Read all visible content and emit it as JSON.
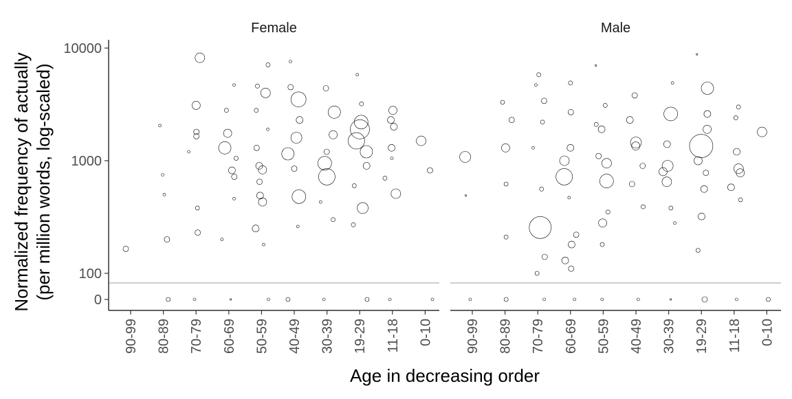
{
  "chart_data": {
    "type": "scatter",
    "ylabel_line1": "Normalized frequency of actually",
    "ylabel_line2": "(per million words, log-scaled)",
    "xlabel": "Age in decreasing order",
    "y_scale": "log",
    "y_ticks": [
      "10000",
      "1000",
      "100",
      "0"
    ],
    "categories": [
      "90-99",
      "80-89",
      "70-79",
      "60-69",
      "50-59",
      "40-49",
      "30-39",
      "19-29",
      "11-18",
      "0-10"
    ],
    "grid": false,
    "point_style": "hollow circles, size proportional to speaker word count",
    "zero_band_color": "#bdbdbd",
    "facets": [
      {
        "name": "Female",
        "points": [
          {
            "x": "90-99",
            "y": 165,
            "s": 4
          },
          {
            "x": "80-89",
            "y": 200,
            "s": 4
          },
          {
            "x": "80-89",
            "y": 500,
            "s": 2
          },
          {
            "x": "80-89",
            "y": 750,
            "s": 2
          },
          {
            "x": "80-89",
            "y": 2050,
            "s": 2
          },
          {
            "x": "80-89",
            "y": 0,
            "s": 3
          },
          {
            "x": "70-79",
            "y": 8200,
            "s": 7
          },
          {
            "x": "70-79",
            "y": 3100,
            "s": 6
          },
          {
            "x": "70-79",
            "y": 1800,
            "s": 4
          },
          {
            "x": "70-79",
            "y": 1650,
            "s": 4
          },
          {
            "x": "70-79",
            "y": 1200,
            "s": 2
          },
          {
            "x": "70-79",
            "y": 380,
            "s": 3
          },
          {
            "x": "70-79",
            "y": 230,
            "s": 4
          },
          {
            "x": "70-79",
            "y": 0,
            "s": 2
          },
          {
            "x": "60-69",
            "y": 4700,
            "s": 2
          },
          {
            "x": "60-69",
            "y": 2800,
            "s": 3
          },
          {
            "x": "60-69",
            "y": 1750,
            "s": 6
          },
          {
            "x": "60-69",
            "y": 1300,
            "s": 9
          },
          {
            "x": "60-69",
            "y": 1050,
            "s": 3
          },
          {
            "x": "60-69",
            "y": 820,
            "s": 5
          },
          {
            "x": "60-69",
            "y": 720,
            "s": 4
          },
          {
            "x": "60-69",
            "y": 460,
            "s": 2
          },
          {
            "x": "60-69",
            "y": 200,
            "s": 2
          },
          {
            "x": "60-69",
            "y": 0,
            "s": 1
          },
          {
            "x": "50-59",
            "y": 7100,
            "s": 3
          },
          {
            "x": "50-59",
            "y": 4600,
            "s": 3
          },
          {
            "x": "50-59",
            "y": 4000,
            "s": 7
          },
          {
            "x": "50-59",
            "y": 2800,
            "s": 3
          },
          {
            "x": "50-59",
            "y": 1900,
            "s": 2
          },
          {
            "x": "50-59",
            "y": 1300,
            "s": 4
          },
          {
            "x": "50-59",
            "y": 900,
            "s": 5
          },
          {
            "x": "50-59",
            "y": 830,
            "s": 6
          },
          {
            "x": "50-59",
            "y": 650,
            "s": 4
          },
          {
            "x": "50-59",
            "y": 490,
            "s": 5
          },
          {
            "x": "50-59",
            "y": 430,
            "s": 6
          },
          {
            "x": "50-59",
            "y": 250,
            "s": 5
          },
          {
            "x": "50-59",
            "y": 180,
            "s": 2
          },
          {
            "x": "50-59",
            "y": 0,
            "s": 2
          },
          {
            "x": "40-49",
            "y": 7600,
            "s": 2
          },
          {
            "x": "40-49",
            "y": 4500,
            "s": 4
          },
          {
            "x": "40-49",
            "y": 3500,
            "s": 11
          },
          {
            "x": "40-49",
            "y": 2300,
            "s": 5
          },
          {
            "x": "40-49",
            "y": 1600,
            "s": 8
          },
          {
            "x": "40-49",
            "y": 1150,
            "s": 9
          },
          {
            "x": "40-49",
            "y": 850,
            "s": 4
          },
          {
            "x": "40-49",
            "y": 480,
            "s": 10
          },
          {
            "x": "40-49",
            "y": 260,
            "s": 2
          },
          {
            "x": "40-49",
            "y": 0,
            "s": 3
          },
          {
            "x": "30-39",
            "y": 4400,
            "s": 4
          },
          {
            "x": "30-39",
            "y": 2700,
            "s": 9
          },
          {
            "x": "30-39",
            "y": 1700,
            "s": 6
          },
          {
            "x": "30-39",
            "y": 1200,
            "s": 4
          },
          {
            "x": "30-39",
            "y": 950,
            "s": 10
          },
          {
            "x": "30-39",
            "y": 720,
            "s": 12
          },
          {
            "x": "30-39",
            "y": 430,
            "s": 2
          },
          {
            "x": "30-39",
            "y": 300,
            "s": 3
          },
          {
            "x": "30-39",
            "y": 0,
            "s": 2
          },
          {
            "x": "19-29",
            "y": 5800,
            "s": 2
          },
          {
            "x": "19-29",
            "y": 3200,
            "s": 3
          },
          {
            "x": "19-29",
            "y": 2200,
            "s": 10
          },
          {
            "x": "19-29",
            "y": 1900,
            "s": 14
          },
          {
            "x": "19-29",
            "y": 1500,
            "s": 12
          },
          {
            "x": "19-29",
            "y": 1200,
            "s": 9
          },
          {
            "x": "19-29",
            "y": 900,
            "s": 5
          },
          {
            "x": "19-29",
            "y": 600,
            "s": 3
          },
          {
            "x": "19-29",
            "y": 380,
            "s": 8
          },
          {
            "x": "19-29",
            "y": 270,
            "s": 3
          },
          {
            "x": "19-29",
            "y": 0,
            "s": 3
          },
          {
            "x": "11-18",
            "y": 2800,
            "s": 6
          },
          {
            "x": "11-18",
            "y": 2300,
            "s": 5
          },
          {
            "x": "11-18",
            "y": 2000,
            "s": 5
          },
          {
            "x": "11-18",
            "y": 1300,
            "s": 5
          },
          {
            "x": "11-18",
            "y": 1050,
            "s": 2
          },
          {
            "x": "11-18",
            "y": 700,
            "s": 3
          },
          {
            "x": "11-18",
            "y": 510,
            "s": 7
          },
          {
            "x": "11-18",
            "y": 0,
            "s": 2
          },
          {
            "x": "0-10",
            "y": 1500,
            "s": 7
          },
          {
            "x": "0-10",
            "y": 820,
            "s": 4
          },
          {
            "x": "0-10",
            "y": 0,
            "s": 2
          }
        ]
      },
      {
        "name": "Male",
        "points": [
          {
            "x": "90-99",
            "y": 1080,
            "s": 8
          },
          {
            "x": "90-99",
            "y": 490,
            "s": 1
          },
          {
            "x": "90-99",
            "y": 0,
            "s": 2
          },
          {
            "x": "80-89",
            "y": 3300,
            "s": 3
          },
          {
            "x": "80-89",
            "y": 2300,
            "s": 4
          },
          {
            "x": "80-89",
            "y": 1300,
            "s": 6
          },
          {
            "x": "80-89",
            "y": 620,
            "s": 3
          },
          {
            "x": "80-89",
            "y": 210,
            "s": 3
          },
          {
            "x": "80-89",
            "y": 0,
            "s": 3
          },
          {
            "x": "70-79",
            "y": 5800,
            "s": 3
          },
          {
            "x": "70-79",
            "y": 4700,
            "s": 2
          },
          {
            "x": "70-79",
            "y": 3400,
            "s": 4
          },
          {
            "x": "70-79",
            "y": 2200,
            "s": 3
          },
          {
            "x": "70-79",
            "y": 1300,
            "s": 2
          },
          {
            "x": "70-79",
            "y": 560,
            "s": 3
          },
          {
            "x": "70-79",
            "y": 255,
            "s": 16
          },
          {
            "x": "70-79",
            "y": 140,
            "s": 4
          },
          {
            "x": "70-79",
            "y": 100,
            "s": 3
          },
          {
            "x": "70-79",
            "y": 0,
            "s": 2
          },
          {
            "x": "60-69",
            "y": 4900,
            "s": 3
          },
          {
            "x": "60-69",
            "y": 2700,
            "s": 4
          },
          {
            "x": "60-69",
            "y": 1300,
            "s": 5
          },
          {
            "x": "60-69",
            "y": 1000,
            "s": 7
          },
          {
            "x": "60-69",
            "y": 720,
            "s": 12
          },
          {
            "x": "60-69",
            "y": 470,
            "s": 2
          },
          {
            "x": "60-69",
            "y": 220,
            "s": 4
          },
          {
            "x": "60-69",
            "y": 180,
            "s": 5
          },
          {
            "x": "60-69",
            "y": 130,
            "s": 5
          },
          {
            "x": "60-69",
            "y": 110,
            "s": 4
          },
          {
            "x": "60-69",
            "y": 0,
            "s": 2
          },
          {
            "x": "50-59",
            "y": 7000,
            "s": 1
          },
          {
            "x": "50-59",
            "y": 3100,
            "s": 3
          },
          {
            "x": "50-59",
            "y": 2100,
            "s": 3
          },
          {
            "x": "50-59",
            "y": 1900,
            "s": 5
          },
          {
            "x": "50-59",
            "y": 1100,
            "s": 4
          },
          {
            "x": "50-59",
            "y": 950,
            "s": 7
          },
          {
            "x": "50-59",
            "y": 660,
            "s": 10
          },
          {
            "x": "50-59",
            "y": 350,
            "s": 3
          },
          {
            "x": "50-59",
            "y": 280,
            "s": 6
          },
          {
            "x": "50-59",
            "y": 180,
            "s": 3
          },
          {
            "x": "50-59",
            "y": 0,
            "s": 2
          },
          {
            "x": "40-49",
            "y": 3800,
            "s": 4
          },
          {
            "x": "40-49",
            "y": 2300,
            "s": 5
          },
          {
            "x": "40-49",
            "y": 1450,
            "s": 8
          },
          {
            "x": "40-49",
            "y": 1350,
            "s": 6
          },
          {
            "x": "40-49",
            "y": 900,
            "s": 4
          },
          {
            "x": "40-49",
            "y": 620,
            "s": 4
          },
          {
            "x": "40-49",
            "y": 390,
            "s": 3
          },
          {
            "x": "40-49",
            "y": 0,
            "s": 2
          },
          {
            "x": "30-39",
            "y": 4900,
            "s": 2
          },
          {
            "x": "30-39",
            "y": 2600,
            "s": 10
          },
          {
            "x": "30-39",
            "y": 1400,
            "s": 5
          },
          {
            "x": "30-39",
            "y": 900,
            "s": 8
          },
          {
            "x": "30-39",
            "y": 800,
            "s": 6
          },
          {
            "x": "30-39",
            "y": 650,
            "s": 7
          },
          {
            "x": "30-39",
            "y": 380,
            "s": 3
          },
          {
            "x": "30-39",
            "y": 280,
            "s": 2
          },
          {
            "x": "30-39",
            "y": 0,
            "s": 1
          },
          {
            "x": "19-29",
            "y": 8800,
            "s": 1
          },
          {
            "x": "19-29",
            "y": 4400,
            "s": 9
          },
          {
            "x": "19-29",
            "y": 2600,
            "s": 5
          },
          {
            "x": "19-29",
            "y": 1900,
            "s": 6
          },
          {
            "x": "19-29",
            "y": 1350,
            "s": 17
          },
          {
            "x": "19-29",
            "y": 1000,
            "s": 6
          },
          {
            "x": "19-29",
            "y": 780,
            "s": 4
          },
          {
            "x": "19-29",
            "y": 560,
            "s": 5
          },
          {
            "x": "19-29",
            "y": 320,
            "s": 5
          },
          {
            "x": "19-29",
            "y": 160,
            "s": 3
          },
          {
            "x": "19-29",
            "y": 0,
            "s": 4
          },
          {
            "x": "11-18",
            "y": 3000,
            "s": 3
          },
          {
            "x": "11-18",
            "y": 2400,
            "s": 3
          },
          {
            "x": "11-18",
            "y": 1200,
            "s": 5
          },
          {
            "x": "11-18",
            "y": 850,
            "s": 7
          },
          {
            "x": "11-18",
            "y": 780,
            "s": 6
          },
          {
            "x": "11-18",
            "y": 580,
            "s": 5
          },
          {
            "x": "11-18",
            "y": 450,
            "s": 3
          },
          {
            "x": "11-18",
            "y": 0,
            "s": 2
          },
          {
            "x": "0-10",
            "y": 1800,
            "s": 7
          },
          {
            "x": "0-10",
            "y": 0,
            "s": 3
          }
        ]
      }
    ]
  }
}
